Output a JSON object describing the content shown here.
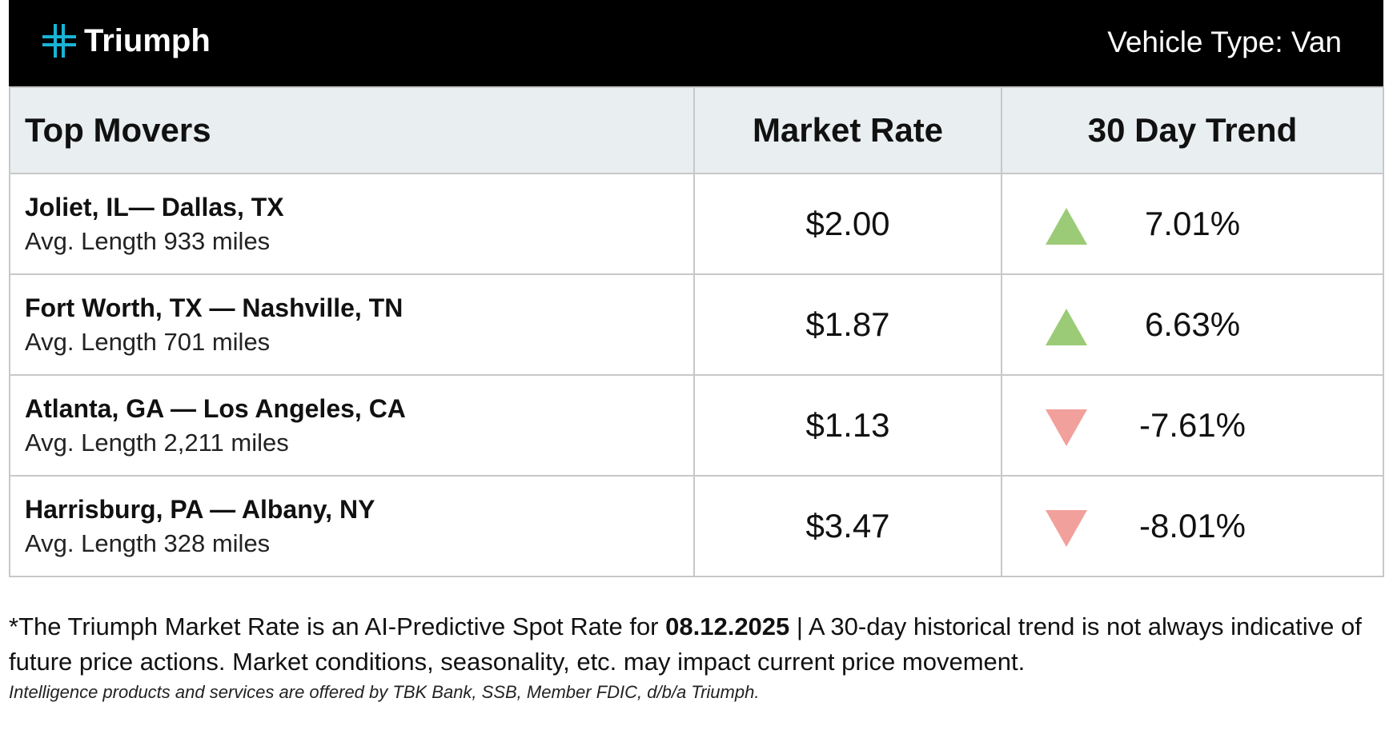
{
  "header": {
    "logo": "Triumph",
    "vehicle_type": "Vehicle Type: Van"
  },
  "table": {
    "columns": [
      "Top Movers",
      "Market Rate",
      "30 Day Trend"
    ],
    "rows": [
      {
        "route": "Joliet, IL— Dallas, TX",
        "length": "Avg. Length 933 miles",
        "rate": "$2.00",
        "trend": "7.01%",
        "direction": "up"
      },
      {
        "route": "Fort Worth, TX — Nashville, TN",
        "length": "Avg. Length 701 miles",
        "rate": "$1.87",
        "trend": "6.63%",
        "direction": "up"
      },
      {
        "route": "Atlanta, GA — Los Angeles, CA",
        "length": "Avg. Length 2,211 miles",
        "rate": "$1.13",
        "trend": "-7.61%",
        "direction": "down"
      },
      {
        "route": "Harrisburg, PA — Albany, NY",
        "length": "Avg. Length 328 miles",
        "rate": "$3.47",
        "trend": "-8.01%",
        "direction": "down"
      }
    ]
  },
  "footnote": {
    "before": "*The Triumph Market Rate is an AI-Predictive Spot Rate for ",
    "date": "08.12.2025",
    "after": " | A 30-day historical trend is not always indicative of future price actions. Market conditions, seasonality, etc. may impact current price movement.",
    "disclaimer": "Intelligence products and services are offered by TBK Bank, SSB, Member FDIC, d/b/a Triumph."
  }
}
